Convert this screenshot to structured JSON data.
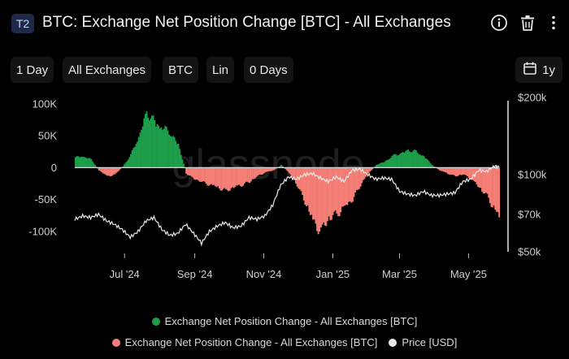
{
  "header": {
    "badge": "T2",
    "title": "BTC: Exchange Net Position Change [BTC] - All Exchanges"
  },
  "toolbar": {
    "resolution": "1 Day",
    "exchange": "All Exchanges",
    "asset": "BTC",
    "scale": "Lin",
    "sma": "0 Days",
    "range": "1y"
  },
  "watermark": "glassnode",
  "chart_data": {
    "type": "area",
    "x_ticks": [
      "Jul '24",
      "Sep '24",
      "Nov '24",
      "Jan '25",
      "Mar '25",
      "May '25"
    ],
    "y_left_ticks": [
      {
        "label": "100K",
        "value": 100000
      },
      {
        "label": "50K",
        "value": 50000
      },
      {
        "label": "0",
        "value": 0
      },
      {
        "label": "-50K",
        "value": -50000
      },
      {
        "label": "-100K",
        "value": -100000
      }
    ],
    "y_right_ticks": [
      {
        "label": "$200k",
        "value": 200000
      },
      {
        "label": "$100k",
        "value": 100000
      },
      {
        "label": "$70k",
        "value": 70000
      },
      {
        "label": "$50k",
        "value": 50000
      }
    ],
    "y_left_range": [
      -132000,
      110000
    ],
    "y_right_log": true,
    "y_right_range": [
      50000,
      200000
    ],
    "date_range": [
      "2024-05-18",
      "2025-05-28"
    ],
    "series": [
      {
        "name": "Exchange Net Position Change - All Exchanges [BTC]",
        "color": "#1e9e4a",
        "part": "positive"
      },
      {
        "name": "Exchange Net Position Change - All Exchanges [BTC]",
        "color": "#f57f76",
        "part": "negative"
      },
      {
        "name": "Price [USD]",
        "color": "#e8e8e8",
        "part": "line"
      }
    ],
    "net_position": [
      [
        "2024-05-18",
        18000
      ],
      [
        "2024-05-25",
        20000
      ],
      [
        "2024-06-01",
        14000
      ],
      [
        "2024-06-08",
        -5000
      ],
      [
        "2024-06-15",
        -15000
      ],
      [
        "2024-06-22",
        -12000
      ],
      [
        "2024-06-29",
        2000
      ],
      [
        "2024-07-06",
        22000
      ],
      [
        "2024-07-13",
        55000
      ],
      [
        "2024-07-20",
        95000
      ],
      [
        "2024-07-27",
        80000
      ],
      [
        "2024-08-03",
        70000
      ],
      [
        "2024-08-10",
        60000
      ],
      [
        "2024-08-17",
        40000
      ],
      [
        "2024-08-24",
        -10000
      ],
      [
        "2024-08-31",
        -20000
      ],
      [
        "2024-09-07",
        -25000
      ],
      [
        "2024-09-14",
        -30000
      ],
      [
        "2024-09-21",
        -35000
      ],
      [
        "2024-09-28",
        -40000
      ],
      [
        "2024-10-05",
        -35000
      ],
      [
        "2024-10-12",
        -30000
      ],
      [
        "2024-10-19",
        -25000
      ],
      [
        "2024-10-26",
        -15000
      ],
      [
        "2024-11-02",
        -8000
      ],
      [
        "2024-11-09",
        -5000
      ],
      [
        "2024-11-16",
        5000
      ],
      [
        "2024-11-23",
        -10000
      ],
      [
        "2024-11-30",
        -30000
      ],
      [
        "2024-12-07",
        -60000
      ],
      [
        "2024-12-14",
        -95000
      ],
      [
        "2024-12-21",
        -110000
      ],
      [
        "2024-12-28",
        -90000
      ],
      [
        "2025-01-04",
        -80000
      ],
      [
        "2025-01-11",
        -70000
      ],
      [
        "2025-01-18",
        -55000
      ],
      [
        "2025-01-25",
        -30000
      ],
      [
        "2025-02-01",
        -10000
      ],
      [
        "2025-02-08",
        5000
      ],
      [
        "2025-02-15",
        10000
      ],
      [
        "2025-02-22",
        20000
      ],
      [
        "2025-03-01",
        25000
      ],
      [
        "2025-03-08",
        30000
      ],
      [
        "2025-03-15",
        28000
      ],
      [
        "2025-03-22",
        20000
      ],
      [
        "2025-03-29",
        5000
      ],
      [
        "2025-04-05",
        -5000
      ],
      [
        "2025-04-12",
        -10000
      ],
      [
        "2025-04-19",
        -15000
      ],
      [
        "2025-04-26",
        -12000
      ],
      [
        "2025-05-03",
        -20000
      ],
      [
        "2025-05-10",
        -35000
      ],
      [
        "2025-05-17",
        -50000
      ],
      [
        "2025-05-24",
        -75000
      ],
      [
        "2025-05-28",
        -90000
      ]
    ],
    "price_usd": [
      [
        "2024-05-18",
        67000
      ],
      [
        "2024-05-25",
        69000
      ],
      [
        "2024-06-01",
        68000
      ],
      [
        "2024-06-08",
        70000
      ],
      [
        "2024-06-15",
        66000
      ],
      [
        "2024-06-22",
        64000
      ],
      [
        "2024-06-29",
        61000
      ],
      [
        "2024-07-06",
        57000
      ],
      [
        "2024-07-13",
        60000
      ],
      [
        "2024-07-20",
        66000
      ],
      [
        "2024-07-27",
        68000
      ],
      [
        "2024-08-03",
        61000
      ],
      [
        "2024-08-10",
        58000
      ],
      [
        "2024-08-17",
        59000
      ],
      [
        "2024-08-24",
        64000
      ],
      [
        "2024-08-31",
        59000
      ],
      [
        "2024-09-07",
        54000
      ],
      [
        "2024-09-14",
        60000
      ],
      [
        "2024-09-21",
        63000
      ],
      [
        "2024-09-28",
        65000
      ],
      [
        "2024-10-05",
        62000
      ],
      [
        "2024-10-12",
        63000
      ],
      [
        "2024-10-19",
        68000
      ],
      [
        "2024-10-26",
        67000
      ],
      [
        "2024-11-02",
        69000
      ],
      [
        "2024-11-09",
        76000
      ],
      [
        "2024-11-16",
        91000
      ],
      [
        "2024-11-23",
        98000
      ],
      [
        "2024-11-30",
        96000
      ],
      [
        "2024-12-07",
        100000
      ],
      [
        "2024-12-14",
        101000
      ],
      [
        "2024-12-21",
        97000
      ],
      [
        "2024-12-28",
        94000
      ],
      [
        "2025-01-04",
        98000
      ],
      [
        "2025-01-11",
        94000
      ],
      [
        "2025-01-18",
        104000
      ],
      [
        "2025-01-25",
        105000
      ],
      [
        "2025-02-01",
        100000
      ],
      [
        "2025-02-08",
        96000
      ],
      [
        "2025-02-15",
        97000
      ],
      [
        "2025-02-22",
        96000
      ],
      [
        "2025-03-01",
        86000
      ],
      [
        "2025-03-08",
        84000
      ],
      [
        "2025-03-15",
        83000
      ],
      [
        "2025-03-22",
        86000
      ],
      [
        "2025-03-29",
        83000
      ],
      [
        "2025-04-05",
        83000
      ],
      [
        "2025-04-12",
        84000
      ],
      [
        "2025-04-19",
        85000
      ],
      [
        "2025-04-26",
        94000
      ],
      [
        "2025-05-03",
        96000
      ],
      [
        "2025-05-10",
        104000
      ],
      [
        "2025-05-17",
        103000
      ],
      [
        "2025-05-24",
        108000
      ],
      [
        "2025-05-28",
        107000
      ]
    ]
  }
}
